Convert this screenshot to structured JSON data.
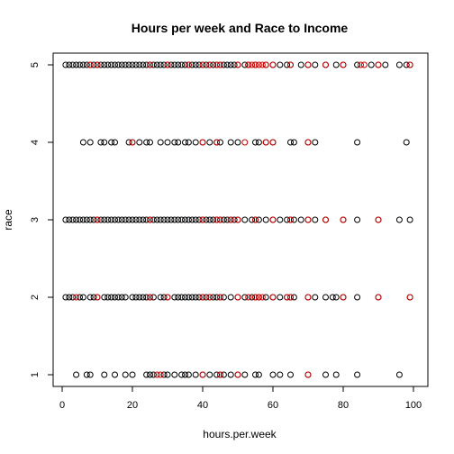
{
  "chart_data": {
    "type": "scatter",
    "title": "Hours per week and Race to Income",
    "xlabel": "hours.per.week",
    "ylabel": "race",
    "xlim": [
      0,
      100
    ],
    "ylim": [
      1,
      5
    ],
    "x_ticks": [
      "0",
      "20",
      "40",
      "60",
      "80",
      "100"
    ],
    "y_ticks": [
      "1",
      "2",
      "3",
      "4",
      "5"
    ],
    "grid": false,
    "legend": "none",
    "point_shape": "open-circle",
    "colors": {
      "low_income": "#000000",
      "high_income": "#cc0000"
    },
    "series": [
      {
        "color_key": "low_income",
        "points": [
          [
            1,
            5
          ],
          [
            2,
            5
          ],
          [
            3,
            5
          ],
          [
            4,
            5
          ],
          [
            5,
            5
          ],
          [
            6,
            5
          ],
          [
            7,
            5
          ],
          [
            8,
            5
          ],
          [
            9,
            5
          ],
          [
            10,
            5
          ],
          [
            11,
            5
          ],
          [
            12,
            5
          ],
          [
            13,
            5
          ],
          [
            14,
            5
          ],
          [
            15,
            5
          ],
          [
            16,
            5
          ],
          [
            17,
            5
          ],
          [
            18,
            5
          ],
          [
            19,
            5
          ],
          [
            20,
            5
          ],
          [
            21,
            5
          ],
          [
            22,
            5
          ],
          [
            23,
            5
          ],
          [
            24,
            5
          ],
          [
            25,
            5
          ],
          [
            26,
            5
          ],
          [
            27,
            5
          ],
          [
            28,
            5
          ],
          [
            29,
            5
          ],
          [
            30,
            5
          ],
          [
            31,
            5
          ],
          [
            32,
            5
          ],
          [
            33,
            5
          ],
          [
            34,
            5
          ],
          [
            35,
            5
          ],
          [
            36,
            5
          ],
          [
            37,
            5
          ],
          [
            38,
            5
          ],
          [
            39,
            5
          ],
          [
            40,
            5
          ],
          [
            41,
            5
          ],
          [
            42,
            5
          ],
          [
            43,
            5
          ],
          [
            44,
            5
          ],
          [
            45,
            5
          ],
          [
            46,
            5
          ],
          [
            47,
            5
          ],
          [
            48,
            5
          ],
          [
            49,
            5
          ],
          [
            50,
            5
          ],
          [
            52,
            5
          ],
          [
            53,
            5
          ],
          [
            55,
            5
          ],
          [
            58,
            5
          ],
          [
            60,
            5
          ],
          [
            62,
            5
          ],
          [
            64,
            5
          ],
          [
            65,
            5
          ],
          [
            68,
            5
          ],
          [
            70,
            5
          ],
          [
            72,
            5
          ],
          [
            75,
            5
          ],
          [
            78,
            5
          ],
          [
            80,
            5
          ],
          [
            84,
            5
          ],
          [
            88,
            5
          ],
          [
            90,
            5
          ],
          [
            92,
            5
          ],
          [
            96,
            5
          ],
          [
            98,
            5
          ],
          [
            99,
            5
          ],
          [
            6,
            4
          ],
          [
            8,
            4
          ],
          [
            11,
            4
          ],
          [
            12,
            4
          ],
          [
            14,
            4
          ],
          [
            15,
            4
          ],
          [
            19,
            4
          ],
          [
            20,
            4
          ],
          [
            22,
            4
          ],
          [
            24,
            4
          ],
          [
            25,
            4
          ],
          [
            28,
            4
          ],
          [
            30,
            4
          ],
          [
            32,
            4
          ],
          [
            33,
            4
          ],
          [
            35,
            4
          ],
          [
            36,
            4
          ],
          [
            38,
            4
          ],
          [
            40,
            4
          ],
          [
            42,
            4
          ],
          [
            44,
            4
          ],
          [
            45,
            4
          ],
          [
            48,
            4
          ],
          [
            50,
            4
          ],
          [
            55,
            4
          ],
          [
            56,
            4
          ],
          [
            58,
            4
          ],
          [
            60,
            4
          ],
          [
            65,
            4
          ],
          [
            66,
            4
          ],
          [
            70,
            4
          ],
          [
            72,
            4
          ],
          [
            84,
            4
          ],
          [
            98,
            4
          ],
          [
            1,
            3
          ],
          [
            2,
            3
          ],
          [
            3,
            3
          ],
          [
            4,
            3
          ],
          [
            5,
            3
          ],
          [
            6,
            3
          ],
          [
            7,
            3
          ],
          [
            8,
            3
          ],
          [
            9,
            3
          ],
          [
            10,
            3
          ],
          [
            11,
            3
          ],
          [
            12,
            3
          ],
          [
            13,
            3
          ],
          [
            14,
            3
          ],
          [
            15,
            3
          ],
          [
            16,
            3
          ],
          [
            17,
            3
          ],
          [
            18,
            3
          ],
          [
            19,
            3
          ],
          [
            20,
            3
          ],
          [
            21,
            3
          ],
          [
            22,
            3
          ],
          [
            23,
            3
          ],
          [
            24,
            3
          ],
          [
            25,
            3
          ],
          [
            26,
            3
          ],
          [
            27,
            3
          ],
          [
            28,
            3
          ],
          [
            29,
            3
          ],
          [
            30,
            3
          ],
          [
            31,
            3
          ],
          [
            32,
            3
          ],
          [
            33,
            3
          ],
          [
            34,
            3
          ],
          [
            35,
            3
          ],
          [
            36,
            3
          ],
          [
            37,
            3
          ],
          [
            38,
            3
          ],
          [
            39,
            3
          ],
          [
            40,
            3
          ],
          [
            41,
            3
          ],
          [
            42,
            3
          ],
          [
            43,
            3
          ],
          [
            44,
            3
          ],
          [
            45,
            3
          ],
          [
            46,
            3
          ],
          [
            47,
            3
          ],
          [
            48,
            3
          ],
          [
            49,
            3
          ],
          [
            50,
            3
          ],
          [
            52,
            3
          ],
          [
            54,
            3
          ],
          [
            55,
            3
          ],
          [
            56,
            3
          ],
          [
            58,
            3
          ],
          [
            60,
            3
          ],
          [
            62,
            3
          ],
          [
            64,
            3
          ],
          [
            65,
            3
          ],
          [
            66,
            3
          ],
          [
            68,
            3
          ],
          [
            70,
            3
          ],
          [
            72,
            3
          ],
          [
            75,
            3
          ],
          [
            80,
            3
          ],
          [
            84,
            3
          ],
          [
            90,
            3
          ],
          [
            96,
            3
          ],
          [
            99,
            3
          ],
          [
            1,
            2
          ],
          [
            2,
            2
          ],
          [
            3,
            2
          ],
          [
            5,
            2
          ],
          [
            6,
            2
          ],
          [
            8,
            2
          ],
          [
            9,
            2
          ],
          [
            10,
            2
          ],
          [
            12,
            2
          ],
          [
            13,
            2
          ],
          [
            14,
            2
          ],
          [
            15,
            2
          ],
          [
            16,
            2
          ],
          [
            17,
            2
          ],
          [
            18,
            2
          ],
          [
            20,
            2
          ],
          [
            21,
            2
          ],
          [
            22,
            2
          ],
          [
            23,
            2
          ],
          [
            24,
            2
          ],
          [
            25,
            2
          ],
          [
            26,
            2
          ],
          [
            28,
            2
          ],
          [
            29,
            2
          ],
          [
            30,
            2
          ],
          [
            32,
            2
          ],
          [
            33,
            2
          ],
          [
            34,
            2
          ],
          [
            35,
            2
          ],
          [
            36,
            2
          ],
          [
            37,
            2
          ],
          [
            38,
            2
          ],
          [
            39,
            2
          ],
          [
            40,
            2
          ],
          [
            41,
            2
          ],
          [
            42,
            2
          ],
          [
            43,
            2
          ],
          [
            44,
            2
          ],
          [
            45,
            2
          ],
          [
            46,
            2
          ],
          [
            48,
            2
          ],
          [
            50,
            2
          ],
          [
            52,
            2
          ],
          [
            54,
            2
          ],
          [
            55,
            2
          ],
          [
            56,
            2
          ],
          [
            58,
            2
          ],
          [
            60,
            2
          ],
          [
            62,
            2
          ],
          [
            64,
            2
          ],
          [
            65,
            2
          ],
          [
            66,
            2
          ],
          [
            70,
            2
          ],
          [
            72,
            2
          ],
          [
            75,
            2
          ],
          [
            77,
            2
          ],
          [
            78,
            2
          ],
          [
            80,
            2
          ],
          [
            84,
            2
          ],
          [
            90,
            2
          ],
          [
            99,
            2
          ],
          [
            4,
            1
          ],
          [
            7,
            1
          ],
          [
            8,
            1
          ],
          [
            12,
            1
          ],
          [
            15,
            1
          ],
          [
            18,
            1
          ],
          [
            20,
            1
          ],
          [
            24,
            1
          ],
          [
            25,
            1
          ],
          [
            26,
            1
          ],
          [
            29,
            1
          ],
          [
            30,
            1
          ],
          [
            32,
            1
          ],
          [
            34,
            1
          ],
          [
            35,
            1
          ],
          [
            36,
            1
          ],
          [
            38,
            1
          ],
          [
            40,
            1
          ],
          [
            42,
            1
          ],
          [
            44,
            1
          ],
          [
            45,
            1
          ],
          [
            46,
            1
          ],
          [
            48,
            1
          ],
          [
            50,
            1
          ],
          [
            52,
            1
          ],
          [
            55,
            1
          ],
          [
            56,
            1
          ],
          [
            60,
            1
          ],
          [
            62,
            1
          ],
          [
            65,
            1
          ],
          [
            70,
            1
          ],
          [
            75,
            1
          ],
          [
            78,
            1
          ],
          [
            84,
            1
          ],
          [
            96,
            1
          ]
        ]
      },
      {
        "color_key": "high_income",
        "points": [
          [
            8,
            5
          ],
          [
            10,
            5
          ],
          [
            25,
            5
          ],
          [
            30,
            5
          ],
          [
            36,
            5
          ],
          [
            40,
            5
          ],
          [
            42,
            5
          ],
          [
            44,
            5
          ],
          [
            45,
            5
          ],
          [
            50,
            5
          ],
          [
            53,
            5
          ],
          [
            54,
            5
          ],
          [
            55,
            5
          ],
          [
            56,
            5
          ],
          [
            57,
            5
          ],
          [
            58,
            5
          ],
          [
            60,
            5
          ],
          [
            65,
            5
          ],
          [
            70,
            5
          ],
          [
            75,
            5
          ],
          [
            80,
            5
          ],
          [
            85,
            5
          ],
          [
            86,
            5
          ],
          [
            90,
            5
          ],
          [
            99,
            5
          ],
          [
            20,
            4
          ],
          [
            40,
            4
          ],
          [
            44,
            4
          ],
          [
            52,
            4
          ],
          [
            58,
            4
          ],
          [
            60,
            4
          ],
          [
            70,
            4
          ],
          [
            10,
            3
          ],
          [
            25,
            3
          ],
          [
            40,
            3
          ],
          [
            44,
            3
          ],
          [
            45,
            3
          ],
          [
            48,
            3
          ],
          [
            50,
            3
          ],
          [
            55,
            3
          ],
          [
            60,
            3
          ],
          [
            65,
            3
          ],
          [
            70,
            3
          ],
          [
            75,
            3
          ],
          [
            80,
            3
          ],
          [
            90,
            3
          ],
          [
            4,
            2
          ],
          [
            10,
            2
          ],
          [
            25,
            2
          ],
          [
            30,
            2
          ],
          [
            40,
            2
          ],
          [
            42,
            2
          ],
          [
            45,
            2
          ],
          [
            50,
            2
          ],
          [
            53,
            2
          ],
          [
            55,
            2
          ],
          [
            56,
            2
          ],
          [
            57,
            2
          ],
          [
            60,
            2
          ],
          [
            64,
            2
          ],
          [
            65,
            2
          ],
          [
            70,
            2
          ],
          [
            80,
            2
          ],
          [
            90,
            2
          ],
          [
            99,
            2
          ],
          [
            27,
            1
          ],
          [
            28,
            1
          ],
          [
            40,
            1
          ],
          [
            45,
            1
          ],
          [
            50,
            1
          ],
          [
            70,
            1
          ]
        ]
      }
    ]
  }
}
